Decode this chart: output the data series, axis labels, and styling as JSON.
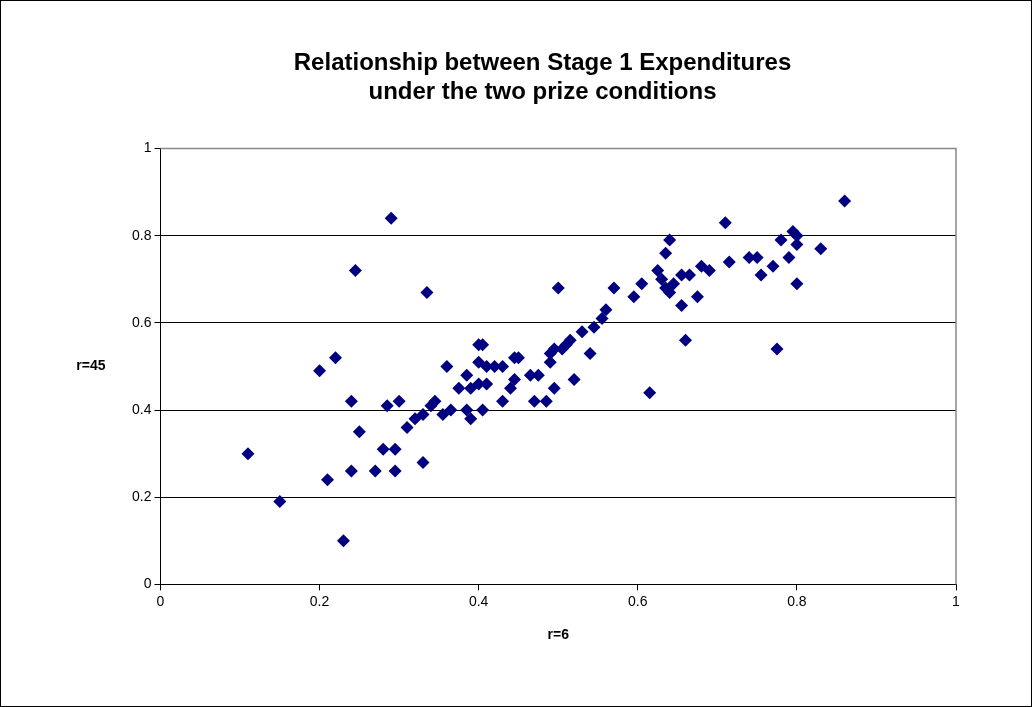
{
  "chart_data": {
    "type": "scatter",
    "title": "Relationship between Stage 1 Expenditures\nunder the two prize conditions",
    "xlabel": "r=6",
    "ylabel": "r=45",
    "x": [
      0.11,
      0.15,
      0.2,
      0.21,
      0.22,
      0.23,
      0.24,
      0.24,
      0.245,
      0.25,
      0.27,
      0.28,
      0.285,
      0.29,
      0.295,
      0.295,
      0.3,
      0.31,
      0.32,
      0.33,
      0.33,
      0.335,
      0.34,
      0.345,
      0.355,
      0.36,
      0.365,
      0.375,
      0.385,
      0.385,
      0.39,
      0.39,
      0.4,
      0.4,
      0.4,
      0.405,
      0.405,
      0.41,
      0.41,
      0.42,
      0.43,
      0.43,
      0.44,
      0.445,
      0.445,
      0.45,
      0.465,
      0.47,
      0.475,
      0.485,
      0.49,
      0.49,
      0.495,
      0.495,
      0.5,
      0.505,
      0.51,
      0.515,
      0.52,
      0.53,
      0.54,
      0.545,
      0.555,
      0.56,
      0.57,
      0.595,
      0.605,
      0.615,
      0.625,
      0.63,
      0.635,
      0.64,
      0.635,
      0.64,
      0.645,
      0.655,
      0.655,
      0.66,
      0.665,
      0.675,
      0.68,
      0.69,
      0.71,
      0.715,
      0.74,
      0.75,
      0.755,
      0.77,
      0.775,
      0.78,
      0.79,
      0.795,
      0.8,
      0.8,
      0.8,
      0.83,
      0.86
    ],
    "series": [
      {
        "color": "#000080",
        "values": [
          0.3,
          0.19,
          0.49,
          0.24,
          0.52,
          0.1,
          0.42,
          0.26,
          0.72,
          0.35,
          0.26,
          0.31,
          0.41,
          0.84,
          0.31,
          0.26,
          0.42,
          0.36,
          0.38,
          0.39,
          0.28,
          0.67,
          0.41,
          0.42,
          0.39,
          0.5,
          0.4,
          0.45,
          0.48,
          0.4,
          0.38,
          0.45,
          0.55,
          0.51,
          0.46,
          0.55,
          0.4,
          0.46,
          0.5,
          0.5,
          0.42,
          0.5,
          0.45,
          0.47,
          0.52,
          0.52,
          0.48,
          0.42,
          0.48,
          0.42,
          0.51,
          0.53,
          0.45,
          0.54,
          0.68,
          0.54,
          0.55,
          0.56,
          0.47,
          0.58,
          0.53,
          0.59,
          0.61,
          0.63,
          0.68,
          0.66,
          0.69,
          0.44,
          0.72,
          0.7,
          0.76,
          0.79,
          0.68,
          0.67,
          0.69,
          0.71,
          0.64,
          0.56,
          0.71,
          0.66,
          0.73,
          0.72,
          0.83,
          0.74,
          0.75,
          0.75,
          0.71,
          0.73,
          0.54,
          0.79,
          0.75,
          0.81,
          0.8,
          0.78,
          0.69,
          0.77,
          0.88
        ]
      }
    ],
    "xlim": [
      0,
      1
    ],
    "ylim": [
      0,
      1
    ],
    "xticks": [
      0,
      0.2,
      0.4,
      0.6,
      0.8,
      1
    ],
    "yticks": [
      0,
      0.2,
      0.4,
      0.6,
      0.8,
      1
    ],
    "grid": "y",
    "legend": false,
    "marker": "diamond"
  }
}
